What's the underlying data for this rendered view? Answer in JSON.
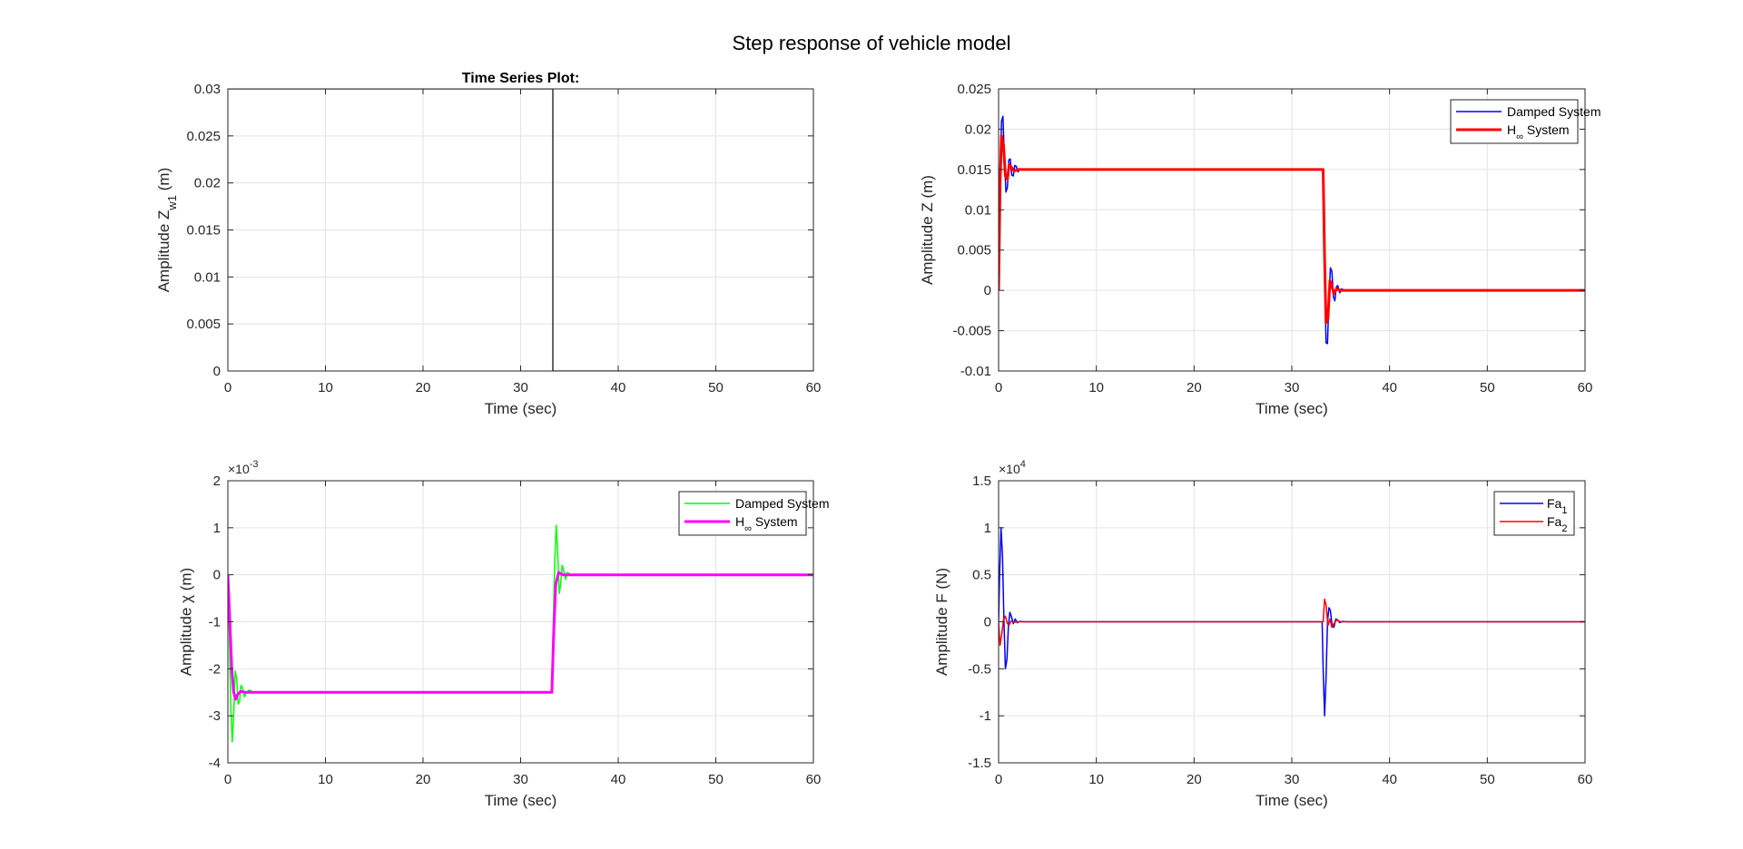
{
  "figure_title": "Step response of vehicle model",
  "chart_data": [
    {
      "id": "tl",
      "type": "line",
      "title": "Time Series Plot:",
      "xlabel": "Time (sec)",
      "ylabel_parts": [
        {
          "t": "Amplitude Z"
        },
        {
          "t": "w1",
          "sub": true
        },
        {
          "t": " (m)"
        }
      ],
      "xlim": [
        0,
        60
      ],
      "ylim": [
        0,
        0.03
      ],
      "xticks": [
        0,
        10,
        20,
        30,
        40,
        50,
        60
      ],
      "xtick_labels": [
        "0",
        "10",
        "20",
        "30",
        "40",
        "50",
        "60"
      ],
      "yticks": [
        0,
        0.005,
        0.01,
        0.015,
        0.02,
        0.025,
        0.03
      ],
      "ytick_labels": [
        "0",
        "0.005",
        "0.01",
        "0.015",
        "0.02",
        "0.025",
        "0.03"
      ],
      "exponent": "",
      "grid": true,
      "legend": [],
      "legend_position": "none",
      "series": [
        {
          "color": "#000000",
          "width": 1.2,
          "legend": false,
          "x": [
            0,
            33.3,
            33.3,
            60
          ],
          "y": [
            0.03,
            0.03,
            0,
            0
          ]
        }
      ]
    },
    {
      "id": "tr",
      "type": "line",
      "title": "",
      "xlabel": "Time (sec)",
      "ylabel_parts": [
        {
          "t": "Amplitude Z (m)"
        }
      ],
      "xlim": [
        0,
        60
      ],
      "ylim": [
        -0.01,
        0.025
      ],
      "xticks": [
        0,
        10,
        20,
        30,
        40,
        50,
        60
      ],
      "xtick_labels": [
        "0",
        "10",
        "20",
        "30",
        "40",
        "50",
        "60"
      ],
      "yticks": [
        -0.01,
        -0.005,
        0,
        0.005,
        0.01,
        0.015,
        0.02,
        0.025
      ],
      "ytick_labels": [
        "-0.01",
        "-0.005",
        "0",
        "0.005",
        "0.01",
        "0.015",
        "0.02",
        "0.025"
      ],
      "exponent": "",
      "grid": true,
      "legend_position": "top-right",
      "legend": [
        {
          "label_parts": [
            {
              "t": "Damped System"
            }
          ],
          "color": "#0000ff",
          "width": 1.5
        },
        {
          "label_parts": [
            {
              "t": "H"
            },
            {
              "t": "∞",
              "sub": true
            },
            {
              "t": " System"
            }
          ],
          "color": "#ff0000",
          "width": 3
        }
      ],
      "series": [
        {
          "color": "#0000ff",
          "width": 1.5,
          "x": [
            0,
            0.15,
            0.3,
            0.45,
            0.6,
            0.75,
            0.9,
            1.05,
            1.2,
            1.35,
            1.5,
            1.65,
            1.8,
            2.0,
            2.2,
            2.5,
            3.0,
            33.2,
            33.35,
            33.5,
            33.65,
            33.8,
            33.95,
            34.1,
            34.25,
            34.4,
            34.55,
            34.7,
            34.9,
            35.1,
            35.4,
            36,
            60
          ],
          "y": [
            0,
            0.012,
            0.021,
            0.0216,
            0.016,
            0.0122,
            0.0128,
            0.0162,
            0.0163,
            0.0143,
            0.0142,
            0.0155,
            0.0154,
            0.0147,
            0.0151,
            0.015,
            0.015,
            0.015,
            0.003,
            -0.0065,
            -0.0066,
            -0.001,
            0.0028,
            0.0024,
            -0.0008,
            -0.0013,
            0.0004,
            0.0006,
            -0.0003,
            0.0002,
            0,
            0,
            0
          ]
        },
        {
          "color": "#ff0000",
          "width": 3,
          "x": [
            0,
            0.15,
            0.3,
            0.5,
            0.7,
            0.9,
            1.1,
            1.3,
            1.6,
            2.0,
            2.5,
            33.2,
            33.35,
            33.5,
            33.7,
            33.9,
            34.1,
            34.3,
            34.6,
            35.0,
            35.5,
            60
          ],
          "y": [
            0,
            0.013,
            0.0192,
            0.018,
            0.0142,
            0.0138,
            0.0156,
            0.0153,
            0.0148,
            0.015,
            0.015,
            0.015,
            0.004,
            -0.004,
            -0.0035,
            0.0012,
            0.0006,
            -0.0004,
            0.0002,
            0,
            0,
            0
          ]
        }
      ]
    },
    {
      "id": "bl",
      "type": "line",
      "title": "",
      "xlabel": "Time (sec)",
      "ylabel_parts": [
        {
          "t": "Amplitude χ (m)"
        }
      ],
      "xlim": [
        0,
        60
      ],
      "ylim": [
        -4,
        2
      ],
      "xticks": [
        0,
        10,
        20,
        30,
        40,
        50,
        60
      ],
      "xtick_labels": [
        "0",
        "10",
        "20",
        "30",
        "40",
        "50",
        "60"
      ],
      "yticks": [
        -4,
        -3,
        -2,
        -1,
        0,
        1,
        2
      ],
      "ytick_labels": [
        "-4",
        "-3",
        "-2",
        "-1",
        "0",
        "1",
        "2"
      ],
      "exponent": "-3",
      "grid": true,
      "legend_position": "top-right",
      "legend": [
        {
          "label_parts": [
            {
              "t": "Damped System"
            }
          ],
          "color": "#00ff00",
          "width": 1.5
        },
        {
          "label_parts": [
            {
              "t": "H"
            },
            {
              "t": "∞",
              "sub": true
            },
            {
              "t": " System"
            }
          ],
          "color": "#ff00ff",
          "width": 3
        }
      ],
      "series": [
        {
          "color": "#00ff00",
          "width": 1.5,
          "x": [
            0,
            0.15,
            0.3,
            0.45,
            0.6,
            0.75,
            0.9,
            1.05,
            1.2,
            1.35,
            1.5,
            1.7,
            1.9,
            2.2,
            2.6,
            3.0,
            33.2,
            33.35,
            33.5,
            33.65,
            33.8,
            33.95,
            34.1,
            34.25,
            34.4,
            34.6,
            34.8,
            35.1,
            35.5,
            36,
            60
          ],
          "y": [
            0,
            -1.2,
            -2.8,
            -3.55,
            -3.0,
            -2.05,
            -2.2,
            -2.75,
            -2.7,
            -2.35,
            -2.4,
            -2.6,
            -2.5,
            -2.45,
            -2.5,
            -2.5,
            -2.5,
            -1.0,
            0.3,
            1.05,
            0.5,
            -0.4,
            -0.2,
            0.2,
            0.1,
            -0.1,
            0.05,
            0,
            0,
            0,
            0
          ]
        },
        {
          "color": "#ff00ff",
          "width": 3,
          "x": [
            0,
            0.2,
            0.4,
            0.6,
            0.8,
            1.0,
            1.3,
            1.8,
            2.5,
            33.2,
            33.4,
            33.6,
            33.9,
            34.3,
            35.0,
            60
          ],
          "y": [
            0,
            -1.0,
            -2.0,
            -2.5,
            -2.65,
            -2.55,
            -2.48,
            -2.5,
            -2.5,
            -2.5,
            -1.2,
            -0.2,
            0.05,
            0,
            0,
            0
          ]
        }
      ]
    },
    {
      "id": "br",
      "type": "line",
      "title": "",
      "xlabel": "Time (sec)",
      "ylabel_parts": [
        {
          "t": "Amplitude F (N)"
        }
      ],
      "xlim": [
        0,
        60
      ],
      "ylim": [
        -1.5,
        1.5
      ],
      "xticks": [
        0,
        10,
        20,
        30,
        40,
        50,
        60
      ],
      "xtick_labels": [
        "0",
        "10",
        "20",
        "30",
        "40",
        "50",
        "60"
      ],
      "yticks": [
        -1.5,
        -1,
        -0.5,
        0,
        0.5,
        1,
        1.5
      ],
      "ytick_labels": [
        "-1.5",
        "-1",
        "-0.5",
        "0",
        "0.5",
        "1",
        "1.5"
      ],
      "exponent": "4",
      "grid": true,
      "legend_position": "top-right",
      "legend": [
        {
          "label_parts": [
            {
              "t": "Fa"
            },
            {
              "t": "1",
              "sub": true
            }
          ],
          "color": "#0000ff",
          "width": 1.5
        },
        {
          "label_parts": [
            {
              "t": "Fa"
            },
            {
              "t": "2",
              "sub": true
            }
          ],
          "color": "#ff0000",
          "width": 1.5
        }
      ],
      "series": [
        {
          "color": "#0000ff",
          "width": 1.5,
          "x": [
            0,
            0.1,
            0.25,
            0.4,
            0.55,
            0.7,
            0.85,
            1.0,
            1.15,
            1.3,
            1.5,
            1.7,
            1.9,
            2.2,
            2.6,
            3.0,
            33.1,
            33.2,
            33.35,
            33.5,
            33.65,
            33.8,
            33.95,
            34.1,
            34.3,
            34.5,
            34.7,
            34.9,
            35.2,
            35.6,
            36,
            60
          ],
          "y": [
            0,
            0.5,
            1.0,
            0.7,
            0,
            -0.5,
            -0.4,
            -0.05,
            0.1,
            0.06,
            -0.02,
            0.03,
            -0.01,
            0.005,
            0,
            0,
            0,
            -0.5,
            -1.0,
            -0.6,
            0,
            0.15,
            0.12,
            -0.02,
            -0.06,
            0.03,
            0.02,
            -0.01,
            0.005,
            0,
            0,
            0
          ]
        },
        {
          "color": "#ff0000",
          "width": 1.5,
          "x": [
            0,
            0.15,
            0.3,
            0.5,
            0.7,
            0.9,
            1.1,
            1.3,
            1.6,
            2.0,
            2.5,
            33.2,
            33.35,
            33.5,
            33.7,
            33.9,
            34.1,
            34.3,
            34.6,
            35.0,
            35.5,
            60
          ],
          "y": [
            0,
            -0.25,
            -0.15,
            0.02,
            0.06,
            -0.02,
            -0.03,
            0.01,
            -0.005,
            0,
            0,
            0,
            0.24,
            0.18,
            -0.04,
            0.03,
            -0.06,
            -0.02,
            0.02,
            0,
            0,
            0
          ]
        }
      ]
    }
  ]
}
